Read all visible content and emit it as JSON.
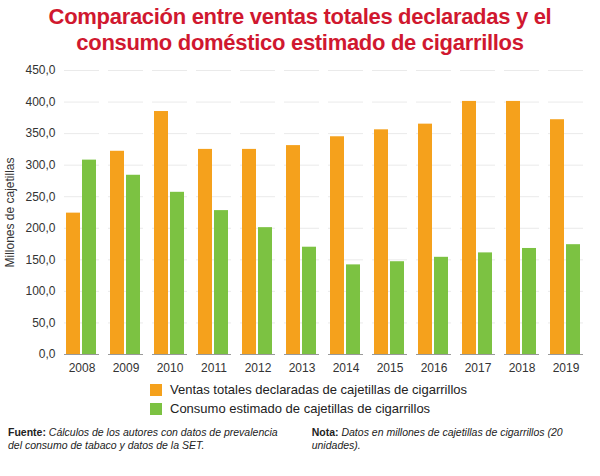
{
  "chart_data": {
    "type": "bar",
    "title": "Comparación entre ventas totales declaradas y el consumo doméstico estimado de cigarrillos",
    "y_label": "Millones de cajetillas",
    "categories": [
      "2008",
      "2009",
      "2010",
      "2011",
      "2012",
      "2013",
      "2014",
      "2015",
      "2016",
      "2017",
      "2018",
      "2019"
    ],
    "series": [
      {
        "name": "Ventas totales declaradas de cajetillas de cigarrillos",
        "color": "#f5a11c",
        "values": [
          224,
          322,
          385,
          325,
          325,
          331,
          345,
          356,
          365,
          401,
          401,
          372
        ]
      },
      {
        "name": "Consumo estimado de cajetillas de cigarrillos",
        "color": "#7cc242",
        "values": [
          308,
          284,
          257,
          228,
          201,
          170,
          142,
          147,
          154,
          161,
          168,
          174
        ]
      }
    ],
    "ylim": [
      0,
      450
    ],
    "yticks": [
      {
        "value": 0,
        "label": "0,0"
      },
      {
        "value": 50,
        "label": "50,0"
      },
      {
        "value": 100,
        "label": "100,0"
      },
      {
        "value": 150,
        "label": "150,0"
      },
      {
        "value": 200,
        "label": "200,0"
      },
      {
        "value": 250,
        "label": "250,0"
      },
      {
        "value": 300,
        "label": "300,0"
      },
      {
        "value": 350,
        "label": "350,0"
      },
      {
        "value": 400,
        "label": "400,0"
      },
      {
        "value": 450,
        "label": "450,0"
      }
    ],
    "grid": true,
    "legend": "bottom",
    "footnotes": [
      {
        "label": "Fuente:",
        "text": "Cálculos de los autores con datos de prevalencia del consumo de tabaco y datos de la SET."
      },
      {
        "label": "Nota:",
        "text": "Datos en millones de cajetillas de cigarrillos (20 unidades)."
      }
    ]
  }
}
